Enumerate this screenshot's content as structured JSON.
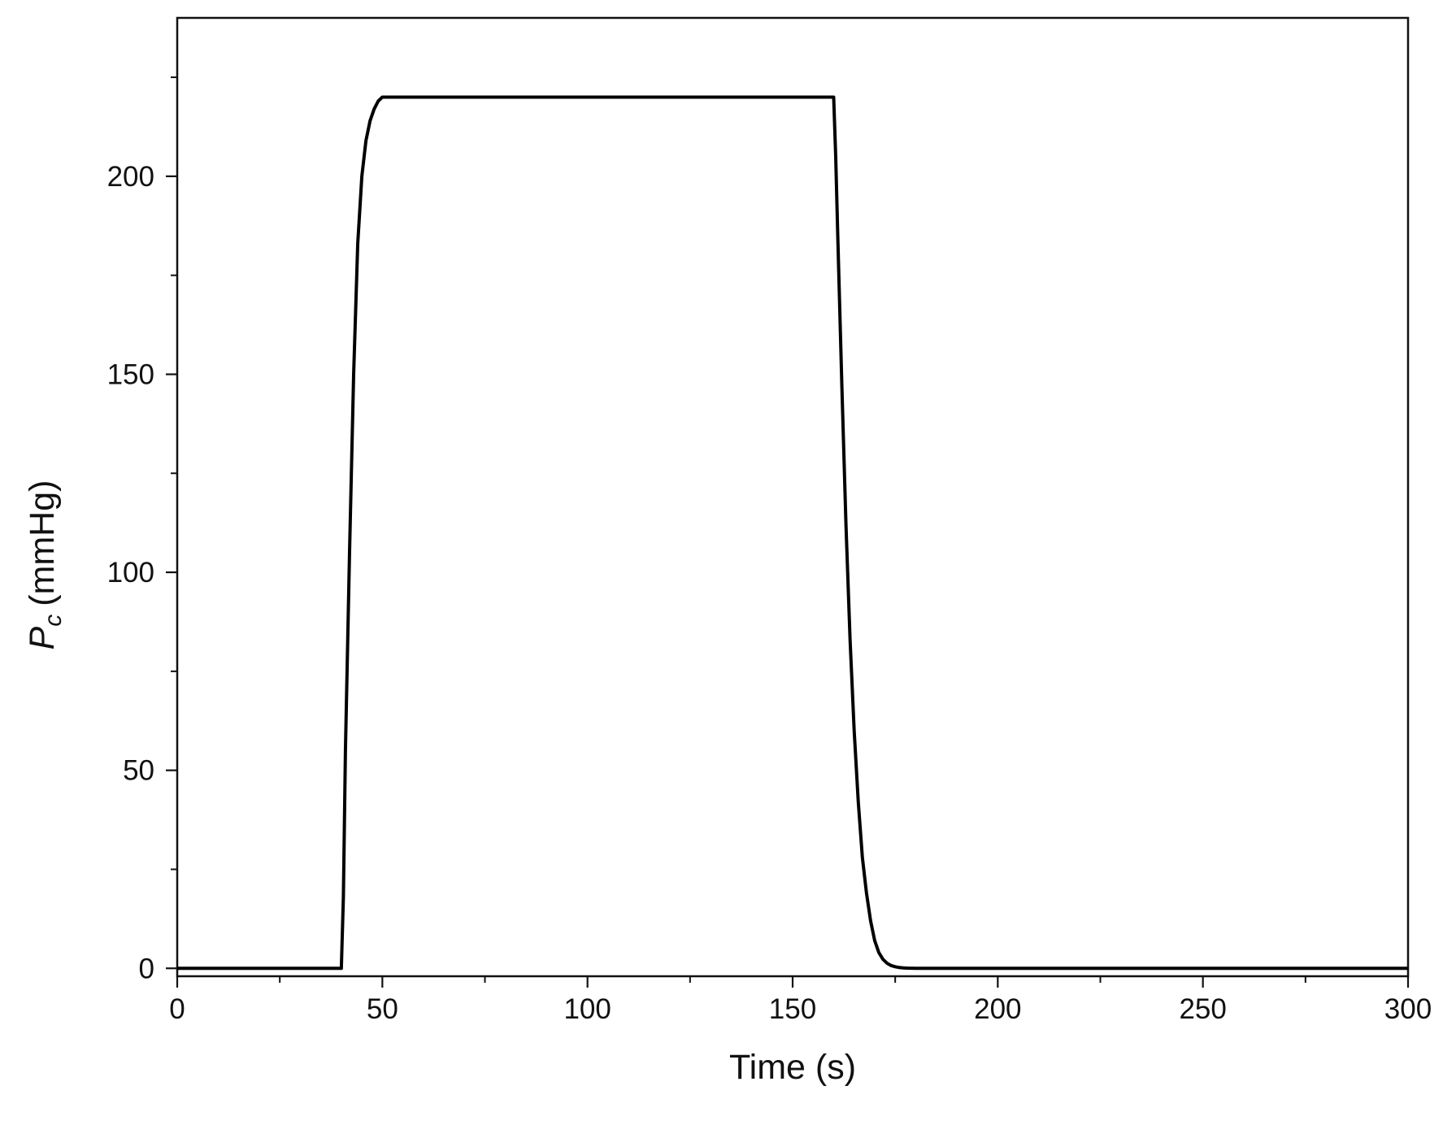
{
  "chart_data": {
    "type": "line",
    "title": "",
    "xlabel": "Time (s)",
    "ylabel": {
      "symbol": "P",
      "subscript": "c",
      "unit": "(mmHg)"
    },
    "xlim": [
      0,
      300
    ],
    "ylim": [
      -2,
      240
    ],
    "x_ticks": [
      0,
      50,
      100,
      150,
      200,
      250,
      300
    ],
    "x_tick_labels": [
      "0",
      "50",
      "100",
      "150",
      "200",
      "250",
      "300"
    ],
    "x_minor_ticks": [
      25,
      75,
      125,
      175,
      225,
      275
    ],
    "y_ticks": [
      0,
      50,
      100,
      150,
      200
    ],
    "y_tick_labels": [
      "0",
      "50",
      "100",
      "150",
      "200"
    ],
    "y_minor_ticks": [
      25,
      75,
      125,
      175,
      225
    ],
    "grid": false,
    "legend": "none",
    "line_color": "#000000",
    "series": [
      {
        "x": [
          0,
          40,
          40.5,
          41,
          42,
          43,
          44,
          45,
          46,
          47,
          48,
          49,
          50,
          160,
          160.5,
          161,
          162,
          163,
          164,
          165,
          166,
          167,
          168,
          169,
          170,
          171,
          172,
          173,
          174,
          175,
          176,
          177,
          178,
          180,
          190,
          200,
          250,
          300
        ],
        "y": [
          0,
          0,
          18,
          55,
          105,
          150,
          183,
          200,
          209,
          214,
          217,
          219,
          220,
          220,
          205,
          185,
          147,
          112,
          83,
          60,
          42,
          28,
          19,
          12,
          7,
          4,
          2.3,
          1.3,
          0.7,
          0.4,
          0.2,
          0.1,
          0.05,
          0,
          0,
          0,
          0,
          0
        ]
      }
    ]
  }
}
